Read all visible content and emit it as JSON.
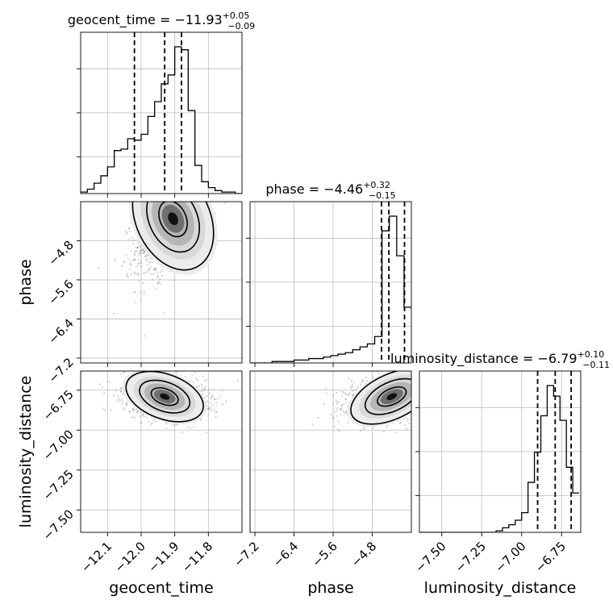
{
  "chart_data": {
    "type": "corner",
    "parameters": [
      "geocent_time",
      "phase",
      "luminosity_distance"
    ],
    "titles": [
      {
        "param": "geocent_time",
        "label": "geocent_time",
        "median": "−11.93",
        "plus": "+0.05",
        "minus": "−0.09"
      },
      {
        "param": "phase",
        "label": "phase",
        "median": "−4.46",
        "plus": "+0.32",
        "minus": "−0.15"
      },
      {
        "param": "luminosity_distance",
        "label": "luminosity_distance",
        "median": "−6.79",
        "plus": "+0.10",
        "minus": "−0.11"
      }
    ],
    "ranges": {
      "geocent_time": [
        -12.18,
        -11.7
      ],
      "phase": [
        -7.3,
        -4.0
      ],
      "luminosity_distance": [
        -7.64,
        -6.63
      ]
    },
    "ticks": {
      "geocent_time": [
        -12.1,
        -12.0,
        -11.9,
        -11.8
      ],
      "phase": [
        -7.2,
        -6.4,
        -5.6,
        -4.8
      ],
      "luminosity_distance": [
        -7.5,
        -7.25,
        -7.0,
        -6.75
      ]
    },
    "tick_labels": {
      "geocent_time": [
        "−12.1",
        "−12.0",
        "−11.9",
        "−11.8"
      ],
      "phase": [
        "−7.2",
        "−6.4",
        "−5.6",
        "−4.8"
      ],
      "luminosity_distance": [
        "−7.50",
        "−7.25",
        "−7.00",
        "−6.75"
      ]
    },
    "quantiles": {
      "geocent_time": [
        -12.02,
        -11.93,
        -11.88
      ],
      "phase": [
        -4.61,
        -4.46,
        -4.14
      ],
      "luminosity_distance": [
        -6.9,
        -6.79,
        -6.69
      ]
    },
    "histograms": {
      "geocent_time": {
        "edges": [
          -12.18,
          -12.16,
          -12.14,
          -12.12,
          -12.1,
          -12.08,
          -12.06,
          -12.04,
          -12.02,
          -12.0,
          -11.98,
          -11.96,
          -11.94,
          -11.92,
          -11.9,
          -11.88,
          -11.86,
          -11.84,
          -11.82,
          -11.8,
          -11.78,
          -11.76,
          -11.74,
          -11.72,
          -11.7
        ],
        "counts": [
          1,
          3,
          7,
          12,
          18,
          29,
          30,
          37,
          36,
          40,
          52,
          62,
          74,
          80,
          99,
          97,
          56,
          19,
          8,
          4,
          2,
          1,
          1,
          0
        ]
      },
      "phase": {
        "edges": [
          -7.3,
          -7.15,
          -7.0,
          -6.85,
          -6.7,
          -6.55,
          -6.4,
          -6.25,
          -6.1,
          -5.95,
          -5.8,
          -5.65,
          -5.5,
          -5.35,
          -5.2,
          -5.05,
          -4.9,
          -4.75,
          -4.6,
          -4.45,
          -4.3,
          -4.15,
          -4.0
        ],
        "counts": [
          0,
          0,
          0,
          1,
          1,
          1,
          2,
          2,
          3,
          3,
          4,
          5,
          6,
          7,
          9,
          11,
          13,
          18,
          90,
          100,
          73,
          38
        ]
      },
      "luminosity_distance": {
        "edges": [
          -7.64,
          -7.6,
          -7.56,
          -7.52,
          -7.48,
          -7.44,
          -7.4,
          -7.36,
          -7.32,
          -7.28,
          -7.24,
          -7.2,
          -7.16,
          -7.12,
          -7.08,
          -7.04,
          -7.0,
          -6.96,
          -6.92,
          -6.88,
          -6.84,
          -6.8,
          -6.76,
          -6.72,
          -6.68,
          -6.64
        ],
        "counts": [
          0,
          0,
          0,
          0,
          0,
          0,
          0,
          0,
          0,
          0,
          0,
          0,
          1,
          3,
          5,
          8,
          13,
          33,
          53,
          77,
          97,
          90,
          74,
          43,
          26
        ]
      }
    },
    "grid": true
  }
}
